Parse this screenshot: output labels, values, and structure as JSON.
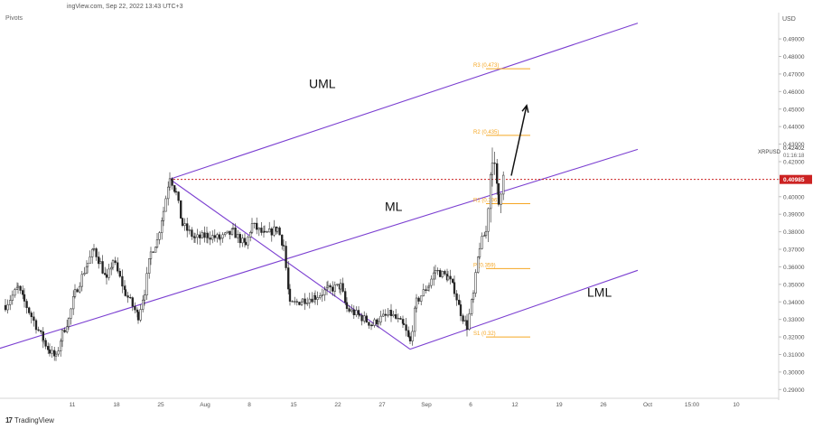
{
  "header": {
    "source_line": "ingView.com, Sep 22, 2022 13:43 UTC+3",
    "indicator": "Pivots",
    "currency": "USD",
    "brand": "TradingView",
    "brand_icon": "tradingview-logo-icon"
  },
  "colors": {
    "pitchfork": "#7b3fd1",
    "pivot": "#f5a623",
    "candle": "#222222",
    "price_line": "#cc2222",
    "arrow": "#111111"
  },
  "chart_data": {
    "type": "candlestick",
    "symbol": "XRPUSD",
    "ylim": [
      0.285,
      0.505
    ],
    "y_ticks": [
      "0.49000",
      "0.48000",
      "0.47000",
      "0.46000",
      "0.45000",
      "0.44000",
      "0.43000",
      "0.42000",
      "0.41000",
      "0.40000",
      "0.39000",
      "0.38000",
      "0.37000",
      "0.36000",
      "0.35000",
      "0.34000",
      "0.33000",
      "0.32000",
      "0.31000",
      "0.30000",
      "0.29000"
    ],
    "x_ticks": [
      "11",
      "18",
      "25",
      "Aug",
      "8",
      "15",
      "22",
      "27",
      "Sep",
      "6",
      "12",
      "19",
      "26",
      "Oct",
      "15:00",
      "10"
    ],
    "last_price_label": "0.42402",
    "countdown_label": "01:16:18",
    "current_price_label": "0.40985",
    "current_price": 0.40985,
    "close_path": [
      {
        "d": "Jul 05",
        "v": 0.338
      },
      {
        "d": "Jul 07",
        "v": 0.348
      },
      {
        "d": "Jul 08",
        "v": 0.34
      },
      {
        "d": "Jul 11",
        "v": 0.318
      },
      {
        "d": "Jul 12",
        "v": 0.312
      },
      {
        "d": "Jul 13",
        "v": 0.308
      },
      {
        "d": "Jul 14",
        "v": 0.322
      },
      {
        "d": "Jul 15",
        "v": 0.33
      },
      {
        "d": "Jul 16",
        "v": 0.345
      },
      {
        "d": "Jul 18",
        "v": 0.362
      },
      {
        "d": "Jul 19",
        "v": 0.37
      },
      {
        "d": "Jul 20",
        "v": 0.362
      },
      {
        "d": "Jul 21",
        "v": 0.352
      },
      {
        "d": "Jul 22",
        "v": 0.364
      },
      {
        "d": "Jul 24",
        "v": 0.345
      },
      {
        "d": "Jul 26",
        "v": 0.332
      },
      {
        "d": "Jul 27",
        "v": 0.346
      },
      {
        "d": "Jul 28",
        "v": 0.368
      },
      {
        "d": "Jul 29",
        "v": 0.375
      },
      {
        "d": "Jul 30",
        "v": 0.392
      },
      {
        "d": "Jul 31",
        "v": 0.412
      },
      {
        "d": "Aug 01",
        "v": 0.402
      },
      {
        "d": "Aug 02",
        "v": 0.384
      },
      {
        "d": "Aug 04",
        "v": 0.376
      },
      {
        "d": "Aug 06",
        "v": 0.378
      },
      {
        "d": "Aug 08",
        "v": 0.376
      },
      {
        "d": "Aug 10",
        "v": 0.38
      },
      {
        "d": "Aug 12",
        "v": 0.372
      },
      {
        "d": "Aug 13",
        "v": 0.384
      },
      {
        "d": "Aug 15",
        "v": 0.378
      },
      {
        "d": "Aug 17",
        "v": 0.382
      },
      {
        "d": "Aug 18",
        "v": 0.372
      },
      {
        "d": "Aug 19",
        "v": 0.338
      },
      {
        "d": "Aug 21",
        "v": 0.341
      },
      {
        "d": "Aug 23",
        "v": 0.343
      },
      {
        "d": "Aug 25",
        "v": 0.347
      },
      {
        "d": "Aug 27",
        "v": 0.349
      },
      {
        "d": "Aug 28",
        "v": 0.336
      },
      {
        "d": "Aug 30",
        "v": 0.332
      },
      {
        "d": "Sep 01",
        "v": 0.327
      },
      {
        "d": "Sep 02",
        "v": 0.33
      },
      {
        "d": "Sep 04",
        "v": 0.333
      },
      {
        "d": "Sep 06",
        "v": 0.326
      },
      {
        "d": "Sep 07",
        "v": 0.317
      },
      {
        "d": "Sep 08",
        "v": 0.34
      },
      {
        "d": "Sep 10",
        "v": 0.35
      },
      {
        "d": "Sep 11",
        "v": 0.358
      },
      {
        "d": "Sep 13",
        "v": 0.354
      },
      {
        "d": "Sep 14",
        "v": 0.347
      },
      {
        "d": "Sep 15",
        "v": 0.334
      },
      {
        "d": "Sep 16",
        "v": 0.326
      },
      {
        "d": "Sep 17",
        "v": 0.344
      },
      {
        "d": "Sep 18",
        "v": 0.372
      },
      {
        "d": "Sep 19",
        "v": 0.38
      },
      {
        "d": "Sep 20",
        "v": 0.425
      },
      {
        "d": "Sep 21",
        "v": 0.396
      },
      {
        "d": "Sep 22",
        "v": 0.424
      }
    ],
    "pitchfork": {
      "pivot_a": {
        "d": "Jul 31",
        "v": 0.41
      },
      "pivot_b": {
        "d": "Sep 07",
        "v": 0.313
      },
      "uml_end": {
        "d": "Oct 13",
        "v": 0.499
      },
      "ml_start": {
        "d": "Jul 03",
        "v": 0.31
      },
      "ml_end": {
        "d": "Oct 13",
        "v": 0.427
      },
      "lml_end": {
        "d": "Oct 13",
        "v": 0.358
      }
    },
    "pivot_levels": [
      {
        "label": "R3 (0.473)",
        "value": 0.473
      },
      {
        "label": "R2 (0.435)",
        "value": 0.435
      },
      {
        "label": "R1 (0.396)",
        "value": 0.396
      },
      {
        "label": "P (0.359)",
        "value": 0.359
      },
      {
        "label": "S1 (0.32)",
        "value": 0.32
      }
    ],
    "pivot_range": {
      "from": "Sep 19",
      "to": "Sep 26"
    },
    "annotations": [
      {
        "text": "UML",
        "d": "Aug 22",
        "v": 0.462
      },
      {
        "text": "ML",
        "d": "Sep 03",
        "v": 0.392
      },
      {
        "text": "LML",
        "d": "Oct 05",
        "v": 0.343
      }
    ],
    "arrow": {
      "from": {
        "d": "Sep 23",
        "v": 0.412
      },
      "to": {
        "d": "Sep 25",
        "v": 0.452
      }
    }
  }
}
